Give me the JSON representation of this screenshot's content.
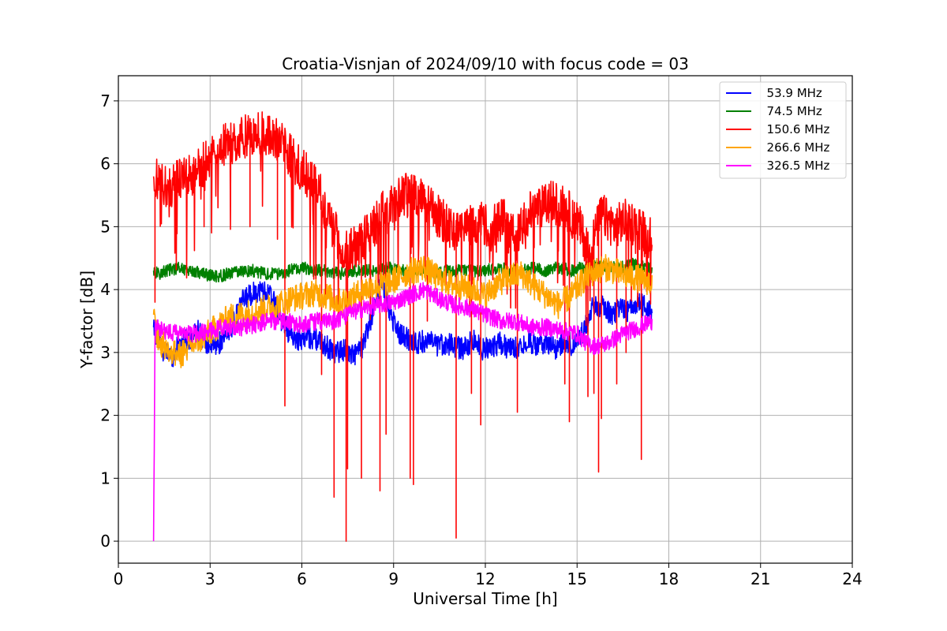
{
  "chart_data": {
    "type": "line",
    "title": "Croatia-Visnjan of 2024/09/10 with focus code = 03",
    "xlabel": "Universal Time [h]",
    "ylabel": "Y-factor [dB]",
    "xlim": [
      0,
      24
    ],
    "ylim": [
      -0.35,
      7.4
    ],
    "xticks": [
      0,
      3,
      6,
      9,
      12,
      15,
      18,
      21,
      24
    ],
    "yticks": [
      0,
      1,
      2,
      3,
      4,
      5,
      6,
      7
    ],
    "grid": true,
    "legend_position": "top-right",
    "series": [
      {
        "name": "  53.9 MHz",
        "color": "#0000ff",
        "x": [
          1.15,
          1.3,
          1.5,
          1.8,
          2.0,
          2.3,
          2.6,
          2.9,
          3.2,
          3.5,
          3.8,
          4.1,
          4.4,
          4.7,
          5.0,
          5.3,
          5.6,
          5.9,
          6.2,
          6.5,
          6.8,
          7.1,
          7.4,
          7.7,
          8.0,
          8.3,
          8.6,
          8.9,
          9.2,
          9.5,
          9.8,
          10.1,
          10.4,
          10.7,
          11.0,
          11.3,
          11.6,
          11.9,
          12.2,
          12.5,
          12.8,
          13.1,
          13.4,
          13.7,
          14.0,
          14.3,
          14.6,
          14.9,
          15.2,
          15.5,
          15.8,
          16.1,
          16.4,
          16.7,
          17.0,
          17.3,
          17.45
        ],
        "y": [
          3.4,
          3.2,
          3.0,
          2.95,
          3.15,
          3.2,
          3.35,
          3.15,
          3.1,
          3.25,
          3.5,
          3.85,
          3.95,
          4.0,
          3.9,
          3.55,
          3.3,
          3.2,
          3.25,
          3.2,
          3.1,
          3.0,
          3.05,
          2.95,
          3.1,
          3.6,
          4.2,
          3.6,
          3.3,
          3.2,
          3.15,
          3.2,
          3.1,
          3.15,
          3.1,
          3.05,
          3.2,
          3.05,
          3.1,
          3.15,
          3.05,
          3.1,
          3.2,
          3.1,
          3.15,
          3.05,
          3.2,
          3.1,
          3.35,
          3.7,
          3.75,
          3.6,
          3.7,
          3.65,
          3.8,
          3.7,
          3.6
        ],
        "noise": 0.18
      },
      {
        "name": "  74.5 MHz",
        "color": "#008000",
        "x": [
          1.15,
          1.3,
          1.6,
          2.0,
          2.4,
          2.8,
          3.2,
          3.6,
          4.0,
          4.4,
          4.8,
          5.2,
          5.6,
          6.0,
          6.4,
          6.8,
          7.2,
          7.6,
          8.0,
          8.4,
          8.8,
          9.2,
          9.6,
          10.0,
          10.4,
          10.8,
          11.2,
          11.6,
          12.0,
          12.4,
          12.8,
          13.2,
          13.6,
          14.0,
          14.4,
          14.8,
          15.2,
          15.6,
          16.0,
          16.4,
          16.8,
          17.2,
          17.45
        ],
        "y": [
          4.3,
          4.25,
          4.3,
          4.35,
          4.3,
          4.25,
          4.2,
          4.25,
          4.3,
          4.3,
          4.25,
          4.25,
          4.3,
          4.35,
          4.3,
          4.3,
          4.25,
          4.3,
          4.3,
          4.3,
          4.35,
          4.3,
          4.3,
          4.3,
          4.25,
          4.3,
          4.3,
          4.3,
          4.3,
          4.35,
          4.3,
          4.3,
          4.35,
          4.3,
          4.35,
          4.3,
          4.35,
          4.4,
          4.35,
          4.35,
          4.4,
          4.35,
          4.35
        ],
        "noise": 0.1
      },
      {
        "name": "  150.6 MHz",
        "color": "#ff0000",
        "x": [
          1.15,
          1.3,
          1.6,
          2.0,
          2.5,
          3.0,
          3.5,
          4.0,
          4.5,
          5.0,
          5.4,
          5.8,
          6.2,
          6.6,
          7.0,
          7.4,
          7.8,
          8.2,
          8.6,
          9.0,
          9.4,
          9.8,
          10.2,
          10.6,
          11.0,
          11.4,
          11.8,
          12.2,
          12.6,
          13.0,
          13.4,
          13.8,
          14.2,
          14.6,
          15.0,
          15.4,
          15.8,
          16.2,
          16.6,
          17.0,
          17.45
        ],
        "y": [
          5.8,
          5.7,
          5.6,
          5.75,
          5.85,
          6.1,
          6.3,
          6.4,
          6.5,
          6.45,
          6.3,
          6.0,
          5.8,
          5.5,
          5.0,
          4.6,
          4.7,
          4.9,
          5.2,
          5.4,
          5.5,
          5.45,
          5.3,
          5.1,
          4.9,
          5.0,
          5.1,
          5.0,
          5.1,
          4.8,
          5.2,
          5.3,
          5.4,
          5.3,
          5.1,
          4.6,
          5.2,
          5.0,
          5.1,
          5.0,
          4.8
        ],
        "noise": 0.35,
        "dips": [
          [
            1.2,
            3.8
          ],
          [
            2.8,
            5.0
          ],
          [
            4.3,
            5.0
          ],
          [
            5.2,
            4.8
          ],
          [
            5.45,
            2.15
          ],
          [
            6.65,
            2.65
          ],
          [
            7.05,
            0.7
          ],
          [
            7.45,
            0.0
          ],
          [
            7.5,
            1.15
          ],
          [
            7.95,
            1.0
          ],
          [
            8.55,
            0.8
          ],
          [
            8.75,
            1.7
          ],
          [
            9.55,
            1.0
          ],
          [
            9.65,
            0.9
          ],
          [
            10.1,
            3.5
          ],
          [
            10.7,
            4.2
          ],
          [
            11.05,
            0.05
          ],
          [
            11.55,
            2.35
          ],
          [
            11.85,
            1.85
          ],
          [
            13.05,
            2.05
          ],
          [
            14.6,
            2.5
          ],
          [
            14.75,
            1.9
          ],
          [
            15.35,
            2.3
          ],
          [
            15.55,
            2.35
          ],
          [
            15.7,
            1.1
          ],
          [
            15.8,
            1.95
          ],
          [
            16.3,
            2.5
          ],
          [
            16.6,
            3.0
          ],
          [
            17.1,
            1.3
          ],
          [
            17.3,
            4.0
          ]
        ]
      },
      {
        "name": "  266.6 MHz",
        "color": "#ffa500",
        "x": [
          1.15,
          1.3,
          1.6,
          2.0,
          2.4,
          2.8,
          3.2,
          3.6,
          4.0,
          4.4,
          4.8,
          5.2,
          5.6,
          6.0,
          6.4,
          6.8,
          7.2,
          7.6,
          8.0,
          8.4,
          8.8,
          9.2,
          9.6,
          10.0,
          10.4,
          10.8,
          11.2,
          11.6,
          12.0,
          12.4,
          12.8,
          13.2,
          13.6,
          14.0,
          14.4,
          14.8,
          15.2,
          15.6,
          16.0,
          16.4,
          16.8,
          17.2,
          17.45
        ],
        "y": [
          3.6,
          3.2,
          3.05,
          2.95,
          3.1,
          3.25,
          3.4,
          3.55,
          3.6,
          3.65,
          3.7,
          3.75,
          3.85,
          3.9,
          3.95,
          3.9,
          3.8,
          3.85,
          4.0,
          4.05,
          4.1,
          4.2,
          4.3,
          4.35,
          4.2,
          4.1,
          4.05,
          4.0,
          3.9,
          4.1,
          4.2,
          4.25,
          4.05,
          3.9,
          3.75,
          3.9,
          4.15,
          4.3,
          4.35,
          4.25,
          4.2,
          4.15,
          4.1
        ],
        "noise": 0.22
      },
      {
        "name": "  326.5 MHz",
        "color": "#ff00ff",
        "x": [
          1.15,
          1.2,
          1.5,
          2.0,
          2.5,
          3.0,
          3.5,
          4.0,
          4.5,
          5.0,
          5.5,
          6.0,
          6.5,
          7.0,
          7.5,
          8.0,
          8.5,
          9.0,
          9.5,
          10.0,
          10.5,
          11.0,
          11.5,
          12.0,
          12.5,
          13.0,
          13.5,
          14.0,
          14.5,
          15.0,
          15.3,
          15.6,
          16.0,
          16.5,
          17.0,
          17.45
        ],
        "y": [
          0.0,
          3.4,
          3.35,
          3.3,
          3.3,
          3.35,
          3.4,
          3.4,
          3.45,
          3.5,
          3.5,
          3.45,
          3.5,
          3.5,
          3.6,
          3.7,
          3.75,
          3.8,
          3.9,
          4.0,
          3.85,
          3.75,
          3.7,
          3.6,
          3.5,
          3.5,
          3.4,
          3.4,
          3.35,
          3.3,
          3.15,
          3.1,
          3.15,
          3.3,
          3.4,
          3.5
        ],
        "noise": 0.14
      }
    ]
  }
}
